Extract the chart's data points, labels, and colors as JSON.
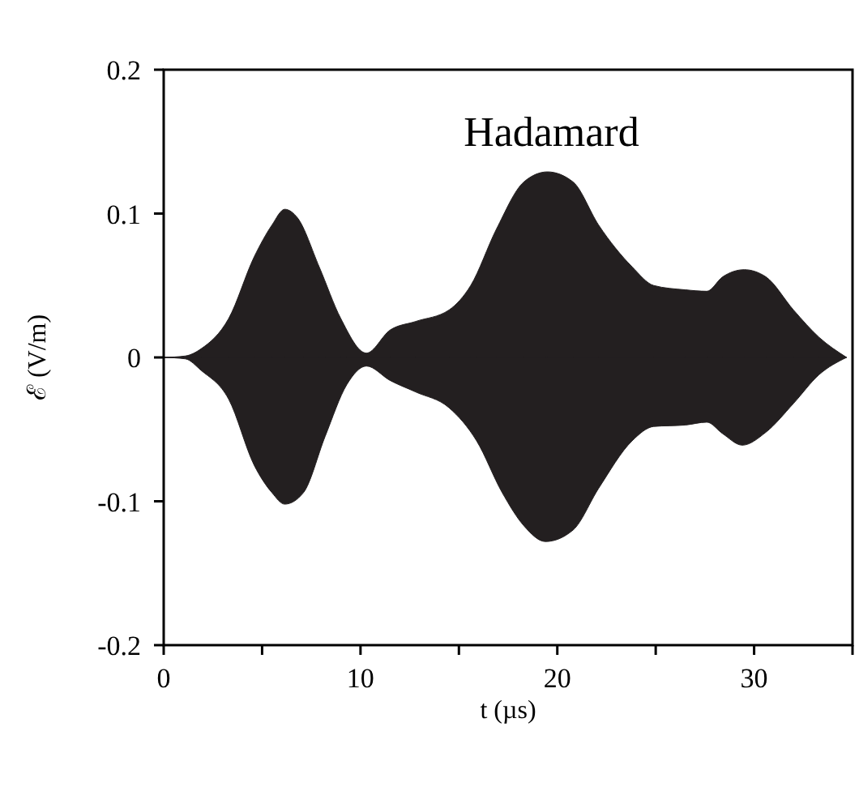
{
  "chart_data": {
    "type": "area",
    "title": "Hadamard",
    "xlabel": "t (µs)",
    "ylabel": "ℰ (V/m)",
    "xlim": [
      0,
      35
    ],
    "xticks": [
      0,
      {
        "value": 5,
        "label": null
      },
      10,
      {
        "value": 15,
        "label": null
      },
      20,
      {
        "value": 25,
        "label": null
      },
      30,
      {
        "value": 35,
        "label": null
      }
    ],
    "ylim": [
      -0.2,
      0.2
    ],
    "yticks": [
      -0.2,
      -0.1,
      0,
      0.1,
      0.2
    ],
    "series": [
      {
        "color": "#231f20",
        "x": [
          0,
          1.1,
          1.9,
          3.3,
          4.6,
          5.5,
          6.15,
          6.8,
          7.9,
          9.0,
          10.3,
          11.5,
          12.8,
          14.5,
          15.6,
          16.9,
          18.3,
          19.5,
          20.8,
          22.1,
          23.8,
          24.9,
          26.5,
          27.6,
          28.4,
          29.5,
          30.6,
          32,
          33.3,
          34.7
        ],
        "values": [
          0,
          0.001,
          0.006,
          0.027,
          0.07,
          0.092,
          0.103,
          0.097,
          0.063,
          0.027,
          0.003,
          0.019,
          0.025,
          0.033,
          0.05,
          0.089,
          0.122,
          0.129,
          0.122,
          0.092,
          0.063,
          0.05,
          0.047,
          0.046,
          0.056,
          0.061,
          0.056,
          0.033,
          0.014,
          0
        ]
      },
      {
        "color": "#231f20",
        "x": [
          0,
          1.1,
          1.9,
          3.3,
          4.6,
          5.5,
          6.15,
          7.1,
          8.2,
          9.3,
          10.3,
          11.5,
          12.8,
          14.5,
          15.9,
          17.2,
          18.3,
          19.4,
          20.8,
          22.1,
          23.8,
          24.9,
          26.5,
          27.6,
          28.4,
          29.4,
          30.6,
          32,
          33.3,
          34.7
        ],
        "values": [
          0,
          -0.001,
          -0.009,
          -0.029,
          -0.075,
          -0.094,
          -0.102,
          -0.094,
          -0.055,
          -0.019,
          -0.006,
          -0.016,
          -0.024,
          -0.035,
          -0.058,
          -0.094,
          -0.117,
          -0.128,
          -0.12,
          -0.091,
          -0.058,
          -0.048,
          -0.047,
          -0.045,
          -0.053,
          -0.061,
          -0.052,
          -0.032,
          -0.012,
          0
        ]
      }
    ]
  }
}
